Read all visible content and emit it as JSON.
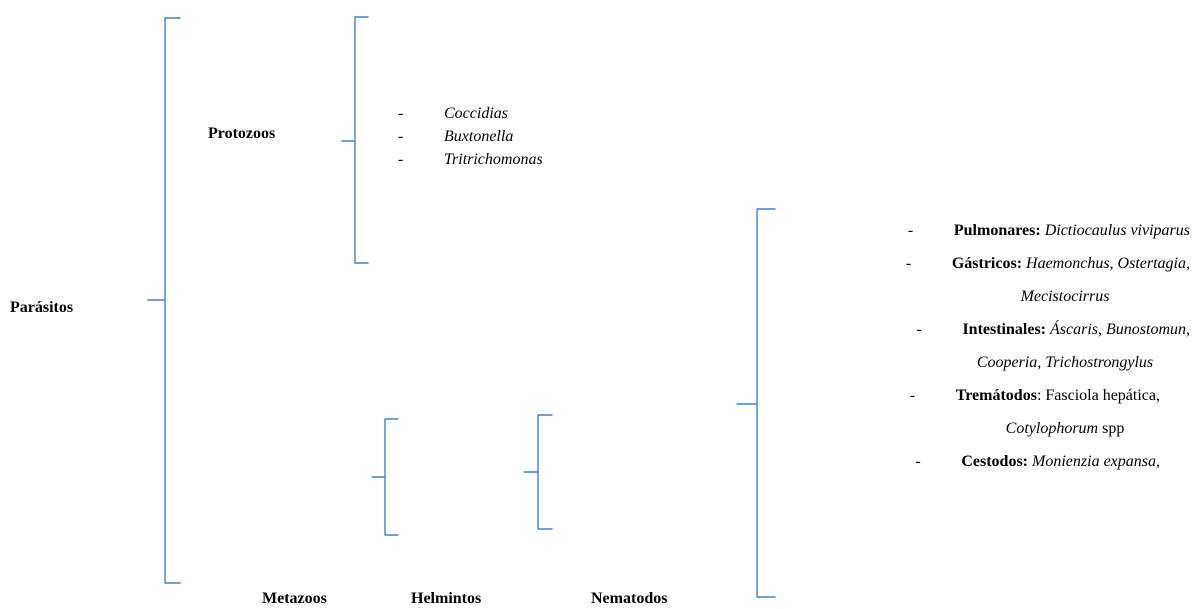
{
  "nodes": {
    "root": "Parásitos",
    "protozoos": "Protozoos",
    "metazoos": "Metazoos",
    "helmintos": "Helmintos",
    "nematodos": "Nematodos"
  },
  "protozoos_items": [
    {
      "dash": "-",
      "text": "Coccidias"
    },
    {
      "dash": "-",
      "text": "Buxtonella"
    },
    {
      "dash": "-",
      "text": "Tritrichomonas"
    }
  ],
  "nematodos_items": {
    "pulmonares": {
      "dash": "-",
      "label": "Pulmonares:",
      "value": "Dictiocaulus viviparus"
    },
    "gastricos": {
      "dash": "-",
      "label": "Gástricos:",
      "value": "Haemonchus, Ostertagia,",
      "value_cont": "Mecistocirrus"
    },
    "intestinales": {
      "dash": "-",
      "label": "Intestinales:",
      "value": "Áscaris, Bunostomun,",
      "value_cont": "Cooperia, Trichostrongylus"
    },
    "trematodos": {
      "dash": "-",
      "label": "Tremátodos",
      "sep": ": Fasciola hepática,",
      "value_cont": "Cotylophorum",
      "value_cont_tail": "spp"
    },
    "cestodos": {
      "dash": "-",
      "label": "Cestodos:",
      "value": "Monienzia expansa,"
    }
  },
  "colors": {
    "bracket": "#4a7ebb",
    "text": "#000000",
    "background": "#ffffff"
  }
}
